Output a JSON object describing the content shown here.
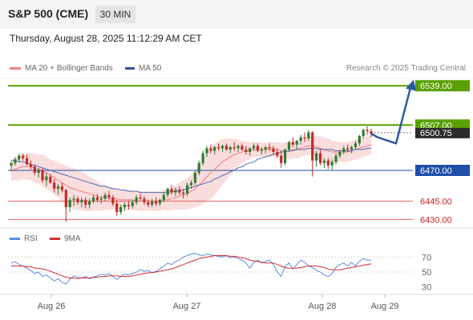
{
  "header": {
    "title": "S&P 500 (CME)",
    "timeframe": "30 MIN",
    "timestamp": "Thursday, August 28, 2025 11:12:29 AM CET"
  },
  "legend": {
    "ma20_label": "MA 20 + Bollinger Bands",
    "ma50_label": "MA 50",
    "rsi_label": "RSI",
    "ma9_label": "9MA",
    "credit": "Research © 2025 Trading Central"
  },
  "colors": {
    "bull": "#2e7d32",
    "bear": "#c62828",
    "ma20": "#f08080",
    "ma50": "#4a6fb5",
    "bands": "#f8d2d2",
    "resistance": "#5aa000",
    "pivot": "#1f4fa8",
    "support": "#e06060",
    "rsi": "#5b8de0",
    "rsi_ma": "#d03030",
    "arrow": "#2c5aa0"
  },
  "chart_data": {
    "type": "candlestick",
    "price_axis": {
      "ylim": [
        6425,
        6545
      ]
    },
    "x_labels": [
      "Aug 26",
      "Aug 27",
      "Aug 28",
      "Aug 29"
    ],
    "levels": [
      {
        "label": "6539.00",
        "value": 6539,
        "kind": "resistance"
      },
      {
        "label": "6507.00",
        "value": 6507,
        "kind": "resistance"
      },
      {
        "label": "6470.00",
        "value": 6470,
        "kind": "pivot"
      },
      {
        "label": "6445.00",
        "value": 6445,
        "kind": "support"
      },
      {
        "label": "6430.00",
        "value": 6430,
        "kind": "support"
      }
    ],
    "last_price": {
      "label": "6500.75",
      "value": 6500.75
    },
    "forecast_path": [
      6500,
      6497,
      6492,
      6540
    ],
    "candles": [
      [
        6474,
        6477,
        6469,
        6476
      ],
      [
        6476,
        6481,
        6474,
        6479
      ],
      [
        6479,
        6484,
        6477,
        6482
      ],
      [
        6482,
        6484,
        6478,
        6480
      ],
      [
        6480,
        6483,
        6474,
        6475
      ],
      [
        6475,
        6478,
        6471,
        6473
      ],
      [
        6473,
        6475,
        6466,
        6468
      ],
      [
        6468,
        6472,
        6464,
        6470
      ],
      [
        6470,
        6472,
        6460,
        6462
      ],
      [
        6462,
        6468,
        6457,
        6465
      ],
      [
        6465,
        6467,
        6459,
        6460
      ],
      [
        6460,
        6463,
        6452,
        6455
      ],
      [
        6455,
        6459,
        6450,
        6457
      ],
      [
        6457,
        6460,
        6452,
        6454
      ],
      [
        6454,
        6455,
        6428,
        6440
      ],
      [
        6440,
        6448,
        6436,
        6446
      ],
      [
        6446,
        6450,
        6441,
        6447
      ],
      [
        6447,
        6449,
        6442,
        6444
      ],
      [
        6444,
        6448,
        6440,
        6446
      ],
      [
        6446,
        6448,
        6439,
        6442
      ],
      [
        6442,
        6447,
        6439,
        6445
      ],
      [
        6445,
        6450,
        6443,
        6448
      ],
      [
        6448,
        6451,
        6444,
        6446
      ],
      [
        6446,
        6449,
        6443,
        6447
      ],
      [
        6447,
        6452,
        6445,
        6450
      ],
      [
        6450,
        6453,
        6446,
        6448
      ],
      [
        6448,
        6450,
        6441,
        6443
      ],
      [
        6443,
        6446,
        6433,
        6436
      ],
      [
        6436,
        6442,
        6434,
        6440
      ],
      [
        6440,
        6444,
        6437,
        6442
      ],
      [
        6442,
        6445,
        6438,
        6441
      ],
      [
        6441,
        6446,
        6439,
        6444
      ],
      [
        6444,
        6450,
        6442,
        6448
      ],
      [
        6448,
        6451,
        6445,
        6447
      ],
      [
        6447,
        6449,
        6442,
        6444
      ],
      [
        6444,
        6446,
        6440,
        6442
      ],
      [
        6442,
        6447,
        6440,
        6445
      ],
      [
        6445,
        6448,
        6441,
        6443
      ],
      [
        6443,
        6447,
        6441,
        6446
      ],
      [
        6446,
        6452,
        6444,
        6450
      ],
      [
        6450,
        6456,
        6448,
        6455
      ],
      [
        6455,
        6458,
        6450,
        6452
      ],
      [
        6452,
        6456,
        6449,
        6454
      ],
      [
        6454,
        6457,
        6450,
        6452
      ],
      [
        6452,
        6455,
        6447,
        6451
      ],
      [
        6451,
        6460,
        6449,
        6458
      ],
      [
        6458,
        6462,
        6455,
        6460
      ],
      [
        6460,
        6470,
        6458,
        6468
      ],
      [
        6468,
        6478,
        6466,
        6476
      ],
      [
        6476,
        6486,
        6474,
        6484
      ],
      [
        6484,
        6490,
        6481,
        6488
      ],
      [
        6488,
        6491,
        6484,
        6486
      ],
      [
        6486,
        6490,
        6483,
        6489
      ],
      [
        6489,
        6492,
        6486,
        6488
      ],
      [
        6488,
        6491,
        6485,
        6490
      ],
      [
        6490,
        6492,
        6486,
        6487
      ],
      [
        6487,
        6490,
        6484,
        6489
      ],
      [
        6489,
        6493,
        6486,
        6488
      ],
      [
        6488,
        6491,
        6485,
        6490
      ],
      [
        6490,
        6492,
        6486,
        6487
      ],
      [
        6487,
        6490,
        6483,
        6485
      ],
      [
        6485,
        6489,
        6482,
        6488
      ],
      [
        6488,
        6492,
        6486,
        6490
      ],
      [
        6490,
        6492,
        6485,
        6486
      ],
      [
        6486,
        6489,
        6483,
        6487
      ],
      [
        6487,
        6490,
        6484,
        6489
      ],
      [
        6489,
        6492,
        6486,
        6488
      ],
      [
        6488,
        6490,
        6483,
        6485
      ],
      [
        6485,
        6488,
        6480,
        6482
      ],
      [
        6482,
        6486,
        6472,
        6476
      ],
      [
        6476,
        6488,
        6474,
        6487
      ],
      [
        6487,
        6494,
        6485,
        6493
      ],
      [
        6493,
        6497,
        6489,
        6491
      ],
      [
        6491,
        6495,
        6487,
        6494
      ],
      [
        6494,
        6499,
        6491,
        6497
      ],
      [
        6497,
        6501,
        6493,
        6496
      ],
      [
        6496,
        6503,
        6494,
        6501
      ],
      [
        6501,
        6502,
        6465,
        6478
      ],
      [
        6478,
        6486,
        6473,
        6484
      ],
      [
        6484,
        6487,
        6474,
        6476
      ],
      [
        6476,
        6480,
        6472,
        6478
      ],
      [
        6478,
        6480,
        6471,
        6474
      ],
      [
        6474,
        6479,
        6470,
        6477
      ],
      [
        6477,
        6484,
        6475,
        6482
      ],
      [
        6482,
        6487,
        6480,
        6485
      ],
      [
        6485,
        6490,
        6483,
        6488
      ],
      [
        6488,
        6491,
        6485,
        6487
      ],
      [
        6487,
        6490,
        6484,
        6489
      ],
      [
        6489,
        6494,
        6487,
        6492
      ],
      [
        6492,
        6499,
        6490,
        6498
      ],
      [
        6498,
        6504,
        6496,
        6503
      ],
      [
        6503,
        6506,
        6499,
        6502
      ],
      [
        6502,
        6504,
        6497,
        6500
      ]
    ],
    "ma20": [
      6470,
      6471,
      6472,
      6473,
      6473,
      6473,
      6472,
      6471,
      6470,
      6468,
      6466,
      6464,
      6462,
      6460,
      6458,
      6456,
      6455,
      6454,
      6453,
      6452,
      6451,
      6450,
      6449,
      6448,
      6448,
      6447,
      6447,
      6447,
      6446,
      6446,
      6446,
      6446,
      6445,
      6445,
      6445,
      6445,
      6445,
      6445,
      6445,
      6446,
      6446,
      6447,
      6448,
      6449,
      6450,
      6451,
      6453,
      6455,
      6458,
      6461,
      6465,
      6468,
      6471,
      6474,
      6477,
      6479,
      6481,
      6483,
      6484,
      6485,
      6486,
      6486,
      6487,
      6487,
      6487,
      6487,
      6487,
      6487,
      6487,
      6486,
      6486,
      6486,
      6487,
      6487,
      6488,
      6489,
      6490,
      6490,
      6489,
      6488,
      6487,
      6486,
      6485,
      6485,
      6485,
      6485,
      6485,
      6486,
      6487,
      6488,
      6489,
      6490,
      6491
    ],
    "ma50": [
      6478,
      6478,
      6477,
      6477,
      6476,
      6475,
      6474,
      6473,
      6472,
      6471,
      6470,
      6469,
      6468,
      6467,
      6466,
      6465,
      6464,
      6463,
      6462,
      6461,
      6460,
      6459,
      6458,
      6457,
      6457,
      6456,
      6455,
      6455,
      6454,
      6454,
      6453,
      6453,
      6453,
      6452,
      6452,
      6452,
      6452,
      6452,
      6452,
      6452,
      6452,
      6453,
      6453,
      6454,
      6454,
      6455,
      6456,
      6457,
      6458,
      6459,
      6460,
      6461,
      6463,
      6464,
      6466,
      6467,
      6469,
      6470,
      6472,
      6473,
      6475,
      6476,
      6477,
      6479,
      6480,
      6481,
      6482,
      6483,
      6484,
      6485,
      6485,
      6486,
      6486,
      6487,
      6487,
      6487,
      6488,
      6488,
      6488,
      6487,
      6487,
      6487,
      6487,
      6486,
      6486,
      6486,
      6486,
      6486,
      6487,
      6487,
      6487,
      6488,
      6488
    ],
    "bb_width": [
      9,
      9,
      10,
      10,
      11,
      11,
      12,
      12,
      13,
      13,
      13,
      14,
      14,
      15,
      16,
      16,
      17,
      16,
      16,
      15,
      14,
      13,
      12,
      11,
      10,
      9,
      9,
      8,
      8,
      8,
      8,
      8,
      8,
      8,
      8,
      8,
      8,
      8,
      8,
      8,
      9,
      9,
      10,
      11,
      12,
      13,
      14,
      15,
      17,
      19,
      20,
      21,
      21,
      20,
      19,
      17,
      15,
      13,
      11,
      9,
      8,
      7,
      6,
      6,
      6,
      6,
      6,
      6,
      6,
      6,
      7,
      7,
      7,
      7,
      7,
      7,
      7,
      8,
      9,
      10,
      10,
      10,
      9,
      9,
      8,
      8,
      8,
      8,
      8,
      8,
      8,
      8,
      8
    ],
    "rsi_axis": {
      "ticks": [
        70,
        50,
        30
      ],
      "ylim": [
        20,
        80
      ]
    },
    "rsi": [
      62,
      64,
      60,
      58,
      55,
      52,
      48,
      50,
      44,
      46,
      42,
      38,
      41,
      36,
      34,
      40,
      45,
      43,
      42,
      44,
      41,
      43,
      45,
      47,
      46,
      48,
      44,
      40,
      44,
      47,
      46,
      48,
      50,
      53,
      51,
      52,
      49,
      51,
      54,
      58,
      62,
      60,
      64,
      66,
      70,
      72,
      74,
      75,
      73,
      72,
      74,
      73,
      72,
      71,
      70,
      72,
      69,
      70,
      68,
      66,
      62,
      55,
      63,
      66,
      62,
      64,
      66,
      60,
      50,
      44,
      58,
      62,
      54,
      60,
      66,
      63,
      58,
      56,
      52,
      50,
      46,
      44,
      48,
      56,
      60,
      62,
      58,
      63,
      58,
      64,
      68,
      66,
      66
    ],
    "rsi_ma": [
      58,
      58,
      58,
      58,
      57,
      57,
      55,
      55,
      54,
      53,
      51,
      49,
      47,
      45,
      43,
      42,
      42,
      41,
      42,
      42,
      42,
      43,
      43,
      44,
      44,
      45,
      45,
      45,
      44,
      44,
      44,
      45,
      46,
      47,
      48,
      49,
      49,
      50,
      51,
      52,
      53,
      54,
      56,
      58,
      60,
      62,
      64,
      66,
      68,
      69,
      70,
      71,
      72,
      72,
      72,
      72,
      71,
      71,
      70,
      69,
      68,
      66,
      65,
      64,
      63,
      62,
      62,
      62,
      60,
      58,
      56,
      55,
      55,
      55,
      56,
      57,
      58,
      58,
      58,
      57,
      56,
      54,
      53,
      53,
      53,
      54,
      55,
      56,
      57,
      58,
      59,
      60,
      61
    ]
  }
}
